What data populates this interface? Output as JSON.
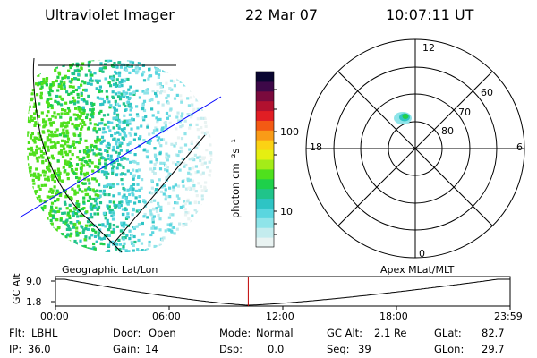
{
  "header": {
    "instrument": "Ultraviolet Imager",
    "date": "22 Mar 07",
    "time": "10:07:11 UT"
  },
  "colorbar": {
    "unit_label": "photon cm⁻²s⁻¹",
    "ticks": [
      "100",
      "10"
    ],
    "colors": [
      "#e9f3f2",
      "#c4ecee",
      "#8fe4e9",
      "#5ad6df",
      "#2ec4c4",
      "#20c48a",
      "#1ed04a",
      "#4fe01d",
      "#a4ec18",
      "#e5ef11",
      "#fbd214",
      "#f99b17",
      "#f35a14",
      "#e11e24",
      "#b2112f",
      "#7a0a3d",
      "#3d0848",
      "#0a0630"
    ]
  },
  "polar": {
    "latitude_labels": [
      "80",
      "70",
      "60"
    ],
    "mlt_labels": {
      "top": "12",
      "left": "18",
      "right": "6",
      "bottom": "0"
    }
  },
  "track": {
    "axis_label": "GC Alt",
    "ymax": "9.0",
    "ymin": "1.8",
    "left_label": "Geographic Lat/Lon",
    "right_label": "Apex MLat/MLT",
    "time_ticks": [
      "00:00",
      "06:00",
      "12:00",
      "18:00",
      "23:59"
    ],
    "current_time_fraction": 0.424
  },
  "footer": {
    "row1": [
      {
        "key": "Flt:",
        "value": "LBHL"
      },
      {
        "key": "Door:",
        "value": "Open"
      },
      {
        "key": "Mode:",
        "value": "Normal"
      },
      {
        "key": "GC Alt:",
        "value": "2.1 Re"
      },
      {
        "key": "GLat:",
        "value": "82.7"
      }
    ],
    "row2": [
      {
        "key": "IP:",
        "value": "36.0"
      },
      {
        "key": "Gain:",
        "value": "14"
      },
      {
        "key": "Dsp:",
        "value": "0.0"
      },
      {
        "key": "Seq:",
        "value": "39"
      },
      {
        "key": "GLon:",
        "value": "29.7"
      }
    ]
  }
}
